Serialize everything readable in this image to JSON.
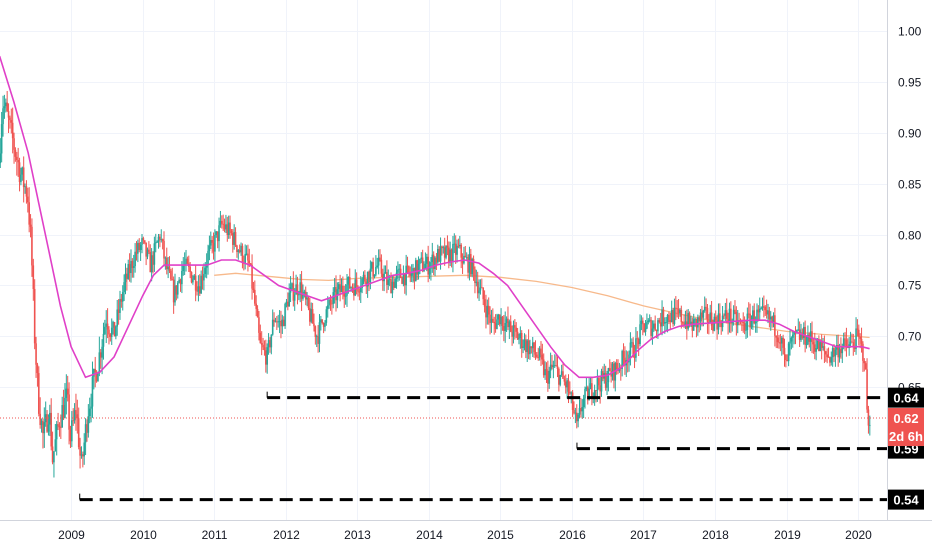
{
  "chart_data": {
    "type": "candlestick",
    "xlim": [
      2008.0,
      2020.25
    ],
    "ylim": [
      0.52,
      1.03
    ],
    "x_ticks": [
      {
        "label": "2009",
        "value": 2009
      },
      {
        "label": "2010",
        "value": 2010
      },
      {
        "label": "2011",
        "value": 2011
      },
      {
        "label": "2012",
        "value": 2012
      },
      {
        "label": "2013",
        "value": 2013
      },
      {
        "label": "2014",
        "value": 2014
      },
      {
        "label": "2015",
        "value": 2015
      },
      {
        "label": "2016",
        "value": 2016
      },
      {
        "label": "2017",
        "value": 2017
      },
      {
        "label": "2018",
        "value": 2018
      },
      {
        "label": "2019",
        "value": 2019
      },
      {
        "label": "2020",
        "value": 2020
      }
    ],
    "y_ticks": [
      {
        "label": "1.00",
        "value": 1.0
      },
      {
        "label": "0.95",
        "value": 0.95
      },
      {
        "label": "0.90",
        "value": 0.9
      },
      {
        "label": "0.85",
        "value": 0.85
      },
      {
        "label": "0.80",
        "value": 0.8
      },
      {
        "label": "0.75",
        "value": 0.75
      },
      {
        "label": "0.70",
        "value": 0.7
      },
      {
        "label": "0.65",
        "value": 0.65
      }
    ],
    "grid": true,
    "colors": {
      "up": "#26a69a",
      "down": "#ef5350",
      "ma_fast": "#e040c8",
      "ma_slow": "#f7b98b",
      "level": "#000000",
      "price": "#ef5350"
    },
    "price_path": [
      [
        2008.0,
        0.87
      ],
      [
        2008.05,
        0.93
      ],
      [
        2008.1,
        0.92
      ],
      [
        2008.2,
        0.89
      ],
      [
        2008.3,
        0.86
      ],
      [
        2008.4,
        0.84
      ],
      [
        2008.45,
        0.79
      ],
      [
        2008.5,
        0.7
      ],
      [
        2008.55,
        0.64
      ],
      [
        2008.62,
        0.6
      ],
      [
        2008.7,
        0.63
      ],
      [
        2008.75,
        0.58
      ],
      [
        2008.85,
        0.62
      ],
      [
        2008.95,
        0.64
      ],
      [
        2009.0,
        0.6
      ],
      [
        2009.08,
        0.63
      ],
      [
        2009.15,
        0.57
      ],
      [
        2009.25,
        0.63
      ],
      [
        2009.4,
        0.68
      ],
      [
        2009.5,
        0.72
      ],
      [
        2009.6,
        0.7
      ],
      [
        2009.75,
        0.75
      ],
      [
        2009.9,
        0.78
      ],
      [
        2010.0,
        0.79
      ],
      [
        2010.12,
        0.77
      ],
      [
        2010.25,
        0.8
      ],
      [
        2010.33,
        0.77
      ],
      [
        2010.45,
        0.74
      ],
      [
        2010.58,
        0.77
      ],
      [
        2010.7,
        0.76
      ],
      [
        2010.8,
        0.75
      ],
      [
        2010.92,
        0.78
      ],
      [
        2011.0,
        0.79
      ],
      [
        2011.12,
        0.81
      ],
      [
        2011.25,
        0.8
      ],
      [
        2011.4,
        0.78
      ],
      [
        2011.5,
        0.77
      ],
      [
        2011.58,
        0.73
      ],
      [
        2011.65,
        0.69
      ],
      [
        2011.75,
        0.68
      ],
      [
        2011.85,
        0.72
      ],
      [
        2011.95,
        0.71
      ],
      [
        2012.05,
        0.74
      ],
      [
        2012.2,
        0.75
      ],
      [
        2012.35,
        0.72
      ],
      [
        2012.45,
        0.7
      ],
      [
        2012.55,
        0.72
      ],
      [
        2012.7,
        0.74
      ],
      [
        2012.85,
        0.75
      ],
      [
        2013.0,
        0.75
      ],
      [
        2013.15,
        0.76
      ],
      [
        2013.3,
        0.77
      ],
      [
        2013.45,
        0.75
      ],
      [
        2013.6,
        0.76
      ],
      [
        2013.75,
        0.76
      ],
      [
        2013.9,
        0.77
      ],
      [
        2014.0,
        0.77
      ],
      [
        2014.15,
        0.78
      ],
      [
        2014.3,
        0.78
      ],
      [
        2014.42,
        0.785
      ],
      [
        2014.5,
        0.775
      ],
      [
        2014.6,
        0.77
      ],
      [
        2014.7,
        0.75
      ],
      [
        2014.8,
        0.73
      ],
      [
        2014.9,
        0.71
      ],
      [
        2015.0,
        0.72
      ],
      [
        2015.1,
        0.71
      ],
      [
        2015.25,
        0.7
      ],
      [
        2015.4,
        0.69
      ],
      [
        2015.55,
        0.68
      ],
      [
        2015.65,
        0.66
      ],
      [
        2015.75,
        0.67
      ],
      [
        2015.85,
        0.66
      ],
      [
        2015.95,
        0.65
      ],
      [
        2016.02,
        0.63
      ],
      [
        2016.08,
        0.61
      ],
      [
        2016.15,
        0.635
      ],
      [
        2016.3,
        0.65
      ],
      [
        2016.5,
        0.66
      ],
      [
        2016.65,
        0.67
      ],
      [
        2016.75,
        0.68
      ],
      [
        2016.9,
        0.69
      ],
      [
        2017.0,
        0.71
      ],
      [
        2017.15,
        0.71
      ],
      [
        2017.3,
        0.72
      ],
      [
        2017.5,
        0.72
      ],
      [
        2017.7,
        0.71
      ],
      [
        2017.85,
        0.72
      ],
      [
        2018.0,
        0.715
      ],
      [
        2018.2,
        0.72
      ],
      [
        2018.4,
        0.71
      ],
      [
        2018.55,
        0.72
      ],
      [
        2018.7,
        0.72
      ],
      [
        2018.8,
        0.715
      ],
      [
        2018.92,
        0.7
      ],
      [
        2019.0,
        0.67
      ],
      [
        2019.05,
        0.69
      ],
      [
        2019.15,
        0.7
      ],
      [
        2019.3,
        0.7
      ],
      [
        2019.45,
        0.69
      ],
      [
        2019.6,
        0.68
      ],
      [
        2019.75,
        0.69
      ],
      [
        2019.9,
        0.69
      ],
      [
        2020.0,
        0.7
      ],
      [
        2020.05,
        0.69
      ],
      [
        2020.1,
        0.68
      ],
      [
        2020.13,
        0.64
      ],
      [
        2020.15,
        0.6
      ],
      [
        2020.16,
        0.62
      ]
    ],
    "ma_fast": [
      [
        2008.0,
        0.975
      ],
      [
        2008.2,
        0.93
      ],
      [
        2008.4,
        0.88
      ],
      [
        2008.55,
        0.83
      ],
      [
        2008.7,
        0.78
      ],
      [
        2008.85,
        0.73
      ],
      [
        2009.0,
        0.69
      ],
      [
        2009.2,
        0.66
      ],
      [
        2009.4,
        0.665
      ],
      [
        2009.6,
        0.68
      ],
      [
        2009.8,
        0.71
      ],
      [
        2010.0,
        0.74
      ],
      [
        2010.15,
        0.76
      ],
      [
        2010.3,
        0.77
      ],
      [
        2010.5,
        0.77
      ],
      [
        2010.7,
        0.77
      ],
      [
        2010.9,
        0.77
      ],
      [
        2011.1,
        0.775
      ],
      [
        2011.3,
        0.775
      ],
      [
        2011.5,
        0.77
      ],
      [
        2011.7,
        0.76
      ],
      [
        2011.9,
        0.75
      ],
      [
        2012.1,
        0.745
      ],
      [
        2012.3,
        0.74
      ],
      [
        2012.5,
        0.735
      ],
      [
        2012.7,
        0.74
      ],
      [
        2012.9,
        0.745
      ],
      [
        2013.1,
        0.75
      ],
      [
        2013.3,
        0.755
      ],
      [
        2013.5,
        0.76
      ],
      [
        2013.7,
        0.762
      ],
      [
        2013.9,
        0.765
      ],
      [
        2014.1,
        0.77
      ],
      [
        2014.3,
        0.773
      ],
      [
        2014.5,
        0.775
      ],
      [
        2014.7,
        0.772
      ],
      [
        2014.9,
        0.762
      ],
      [
        2015.1,
        0.75
      ],
      [
        2015.3,
        0.73
      ],
      [
        2015.5,
        0.71
      ],
      [
        2015.7,
        0.69
      ],
      [
        2015.9,
        0.672
      ],
      [
        2016.1,
        0.66
      ],
      [
        2016.3,
        0.66
      ],
      [
        2016.5,
        0.662
      ],
      [
        2016.7,
        0.67
      ],
      [
        2016.9,
        0.685
      ],
      [
        2017.1,
        0.697
      ],
      [
        2017.3,
        0.705
      ],
      [
        2017.5,
        0.71
      ],
      [
        2017.7,
        0.712
      ],
      [
        2017.9,
        0.713
      ],
      [
        2018.1,
        0.714
      ],
      [
        2018.3,
        0.715
      ],
      [
        2018.5,
        0.716
      ],
      [
        2018.7,
        0.716
      ],
      [
        2018.9,
        0.712
      ],
      [
        2019.1,
        0.705
      ],
      [
        2019.3,
        0.7
      ],
      [
        2019.5,
        0.695
      ],
      [
        2019.7,
        0.69
      ],
      [
        2019.9,
        0.69
      ],
      [
        2020.05,
        0.69
      ],
      [
        2020.16,
        0.688
      ]
    ],
    "ma_slow": [
      [
        2011.0,
        0.76
      ],
      [
        2011.3,
        0.762
      ],
      [
        2011.6,
        0.76
      ],
      [
        2011.9,
        0.758
      ],
      [
        2012.2,
        0.756
      ],
      [
        2012.6,
        0.755
      ],
      [
        2013.0,
        0.757
      ],
      [
        2013.5,
        0.758
      ],
      [
        2014.0,
        0.759
      ],
      [
        2014.5,
        0.76
      ],
      [
        2015.0,
        0.758
      ],
      [
        2015.5,
        0.754
      ],
      [
        2016.0,
        0.748
      ],
      [
        2016.5,
        0.74
      ],
      [
        2017.0,
        0.73
      ],
      [
        2017.5,
        0.722
      ],
      [
        2018.0,
        0.715
      ],
      [
        2018.5,
        0.71
      ],
      [
        2019.0,
        0.705
      ],
      [
        2019.5,
        0.702
      ],
      [
        2020.0,
        0.7
      ],
      [
        2020.16,
        0.699
      ]
    ],
    "levels": [
      {
        "label": "0.64",
        "value": 0.64,
        "from": 2011.74
      },
      {
        "label": "0.59",
        "value": 0.59,
        "from": 2016.07
      },
      {
        "label": "0.54",
        "value": 0.54,
        "from": 2009.12
      }
    ],
    "current_price": {
      "label": "0.62",
      "value": 0.62,
      "countdown": "2d 6h"
    }
  }
}
